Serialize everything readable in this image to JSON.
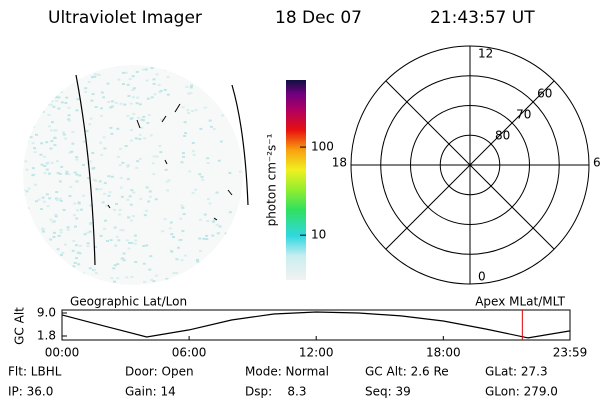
{
  "header": {
    "title": "Ultraviolet Imager",
    "date": "18 Dec 07",
    "time": "21:43:57 UT"
  },
  "colorbar": {
    "label": "photon cm⁻²s⁻¹",
    "log": true,
    "ylim": [
      3.1,
      577
    ],
    "yticks": [
      10,
      100
    ]
  },
  "polar": {
    "rlim": [
      90,
      50
    ],
    "rings": [
      80,
      70,
      60
    ],
    "mlt_labels": [
      12,
      18,
      6,
      0
    ]
  },
  "orbit": {
    "left_title": "Geographic Lat/Lon",
    "right_title": "Apex MLat/MLT",
    "ylabel": "GC Alt",
    "xlim": [
      0,
      23.98
    ],
    "ylim": [
      0.55,
      9.94
    ],
    "xticks": [
      {
        "value": 0,
        "label": "00:00"
      },
      {
        "value": 6,
        "label": "06:00"
      },
      {
        "value": 12,
        "label": "12:00"
      },
      {
        "value": 18,
        "label": "18:00"
      },
      {
        "value": 23.98,
        "label": "23:59"
      }
    ],
    "yticks": [
      {
        "value": 9.0,
        "label": "9.0"
      },
      1.8
    ],
    "x": [
      0,
      2,
      4,
      6,
      8,
      10,
      12,
      14,
      16,
      18,
      20,
      22,
      23.98
    ],
    "values": [
      8.4,
      4.9,
      1.5,
      3.7,
      6.8,
      8.7,
      9.3,
      9.0,
      8.1,
      6.5,
      4.0,
      1.2,
      3.4
    ],
    "marker": 21.73,
    "marker_color": "#e00000"
  },
  "footer": {
    "rows": [
      [
        "Flt: LBHL",
        "Door: Open",
        "Mode: Normal",
        "GC Alt: 2.6 Re",
        "GLat: 27.3"
      ],
      [
        "IP: 36.0",
        "Gain: 14",
        "Dsp:    8.3",
        "Seq: 39",
        "GLon: 279.0"
      ]
    ]
  }
}
